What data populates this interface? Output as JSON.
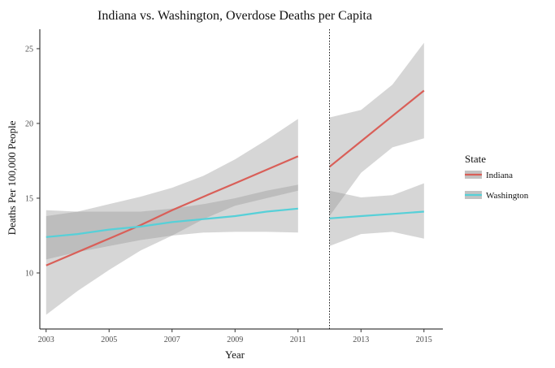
{
  "chart_data": {
    "type": "line",
    "title": "Indiana vs. Washington, Overdose Deaths per Capita",
    "xlabel": "Year",
    "ylabel": "Deaths Per 100,000 People",
    "xlim": [
      2002.8,
      2015.6
    ],
    "ylim": [
      6.25,
      26.3
    ],
    "x_ticks": [
      2003,
      2005,
      2007,
      2009,
      2011,
      2013,
      2015
    ],
    "y_ticks": [
      10,
      15,
      20,
      25
    ],
    "grid": false,
    "cutoff_line": {
      "x": 2012,
      "style": "dotted"
    },
    "legend": {
      "title": "State",
      "position": "right"
    },
    "series": [
      {
        "name": "Indiana",
        "color": "#d95f58",
        "segments": [
          {
            "x": [
              2003,
              2004,
              2005,
              2006,
              2007,
              2008,
              2009,
              2010,
              2011
            ],
            "fit": [
              10.5,
              11.4,
              12.3,
              13.2,
              14.2,
              15.1,
              16.0,
              16.9,
              17.8
            ],
            "lower": [
              7.2,
              8.8,
              10.2,
              11.5,
              12.5,
              13.6,
              14.5,
              15.0,
              15.5
            ],
            "upper": [
              13.8,
              14.1,
              14.6,
              15.1,
              15.7,
              16.5,
              17.6,
              18.9,
              20.3
            ]
          },
          {
            "x": [
              2012,
              2013,
              2014,
              2015
            ],
            "fit": [
              17.1,
              18.8,
              20.5,
              22.2
            ],
            "lower": [
              13.8,
              16.7,
              18.4,
              19.0
            ],
            "upper": [
              20.4,
              20.9,
              22.6,
              25.4
            ]
          }
        ]
      },
      {
        "name": "Washington",
        "color": "#56d0d8",
        "segments": [
          {
            "x": [
              2003,
              2004,
              2005,
              2006,
              2007,
              2008,
              2009,
              2010,
              2011
            ],
            "fit": [
              12.4,
              12.6,
              12.9,
              13.1,
              13.4,
              13.6,
              13.8,
              14.1,
              14.3
            ],
            "lower": [
              10.9,
              11.4,
              11.8,
              12.2,
              12.5,
              12.7,
              12.75,
              12.75,
              12.7
            ],
            "upper": [
              14.2,
              14.1,
              14.1,
              14.1,
              14.3,
              14.6,
              15.0,
              15.5,
              15.9
            ]
          },
          {
            "x": [
              2012,
              2013,
              2014,
              2015
            ],
            "fit": [
              13.65,
              13.8,
              13.95,
              14.1
            ],
            "lower": [
              11.8,
              12.6,
              12.75,
              12.3
            ],
            "upper": [
              15.5,
              15.05,
              15.2,
              16.0
            ]
          }
        ]
      }
    ]
  }
}
